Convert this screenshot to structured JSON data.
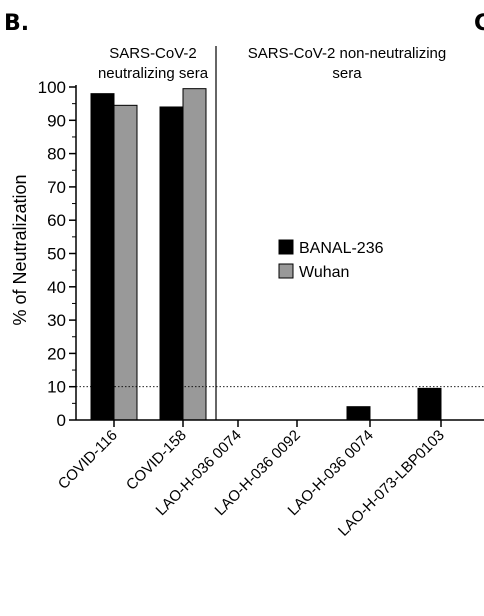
{
  "panel_label": "B.",
  "panel_label_next": "C",
  "chart_data": {
    "type": "bar",
    "title": "",
    "xlabel": "",
    "ylabel": "% of Neutralization",
    "ylim": [
      0,
      100
    ],
    "yticks": [
      0,
      10,
      20,
      30,
      40,
      50,
      60,
      70,
      80,
      90,
      100
    ],
    "categories": [
      "COVID-116",
      "COVID-158",
      "LAO-H-036 0074",
      "LAO-H-036 0092",
      "LAO-H-036 0074",
      "LAO-H-073-LBP0103"
    ],
    "series": [
      {
        "name": "BANAL-236",
        "color": "#000000",
        "values": [
          98,
          94,
          0,
          0,
          4,
          9.5
        ]
      },
      {
        "name": "Wuhan",
        "color": "#999999",
        "values": [
          94.5,
          99.5,
          0,
          0,
          0,
          0
        ]
      }
    ],
    "reference_line": {
      "y": 10,
      "style": "dotted"
    },
    "groups": [
      {
        "label_line1": "SARS-CoV-2",
        "label_line2": "neutralizing sera"
      },
      {
        "label_line1": "SARS-CoV-2 non-neutralizing",
        "label_line2": "sera"
      }
    ],
    "legend_position": "center-right",
    "grid": false
  }
}
